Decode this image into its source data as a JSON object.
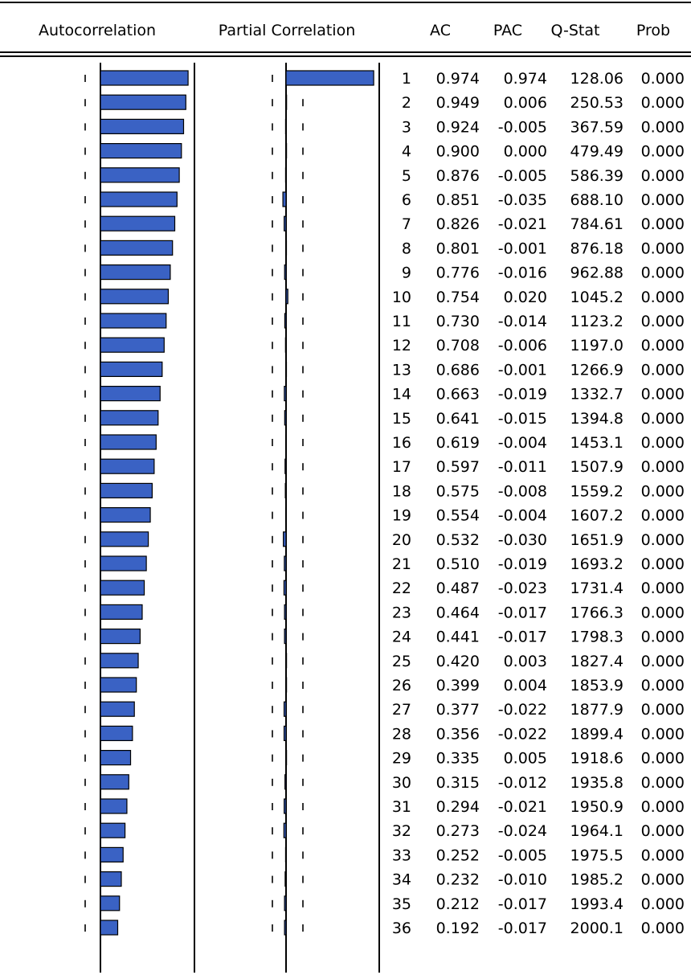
{
  "headers": {
    "autocorrelation": "Autocorrelation",
    "partial_correlation": "Partial Correlation",
    "ac": "AC",
    "pac": "PAC",
    "q_stat": "Q-Stat",
    "prob": "Prob"
  },
  "colors": {
    "bar_fill": "#3a62c4",
    "bar_outline": "#000000",
    "line": "#000000",
    "background": "#ffffff"
  },
  "chart_data": {
    "type": "table",
    "columns": [
      "Autocorrelation",
      "Partial Correlation",
      "",
      "AC",
      "PAC",
      "Q-Stat",
      "Prob"
    ],
    "xlim": [
      -1,
      1
    ],
    "rows": [
      {
        "lag": "1",
        "ac": "0.974",
        "pac": "0.974",
        "q": "128.06",
        "prob": "0.000"
      },
      {
        "lag": "2",
        "ac": "0.949",
        "pac": "0.006",
        "q": "250.53",
        "prob": "0.000"
      },
      {
        "lag": "3",
        "ac": "0.924",
        "pac": "-0.005",
        "q": "367.59",
        "prob": "0.000"
      },
      {
        "lag": "4",
        "ac": "0.900",
        "pac": "0.000",
        "q": "479.49",
        "prob": "0.000"
      },
      {
        "lag": "5",
        "ac": "0.876",
        "pac": "-0.005",
        "q": "586.39",
        "prob": "0.000"
      },
      {
        "lag": "6",
        "ac": "0.851",
        "pac": "-0.035",
        "q": "688.10",
        "prob": "0.000"
      },
      {
        "lag": "7",
        "ac": "0.826",
        "pac": "-0.021",
        "q": "784.61",
        "prob": "0.000"
      },
      {
        "lag": "8",
        "ac": "0.801",
        "pac": "-0.001",
        "q": "876.18",
        "prob": "0.000"
      },
      {
        "lag": "9",
        "ac": "0.776",
        "pac": "-0.016",
        "q": "962.88",
        "prob": "0.000"
      },
      {
        "lag": "10",
        "ac": "0.754",
        "pac": "0.020",
        "q": "1045.2",
        "prob": "0.000"
      },
      {
        "lag": "11",
        "ac": "0.730",
        "pac": "-0.014",
        "q": "1123.2",
        "prob": "0.000"
      },
      {
        "lag": "12",
        "ac": "0.708",
        "pac": "-0.006",
        "q": "1197.0",
        "prob": "0.000"
      },
      {
        "lag": "13",
        "ac": "0.686",
        "pac": "-0.001",
        "q": "1266.9",
        "prob": "0.000"
      },
      {
        "lag": "14",
        "ac": "0.663",
        "pac": "-0.019",
        "q": "1332.7",
        "prob": "0.000"
      },
      {
        "lag": "15",
        "ac": "0.641",
        "pac": "-0.015",
        "q": "1394.8",
        "prob": "0.000"
      },
      {
        "lag": "16",
        "ac": "0.619",
        "pac": "-0.004",
        "q": "1453.1",
        "prob": "0.000"
      },
      {
        "lag": "17",
        "ac": "0.597",
        "pac": "-0.011",
        "q": "1507.9",
        "prob": "0.000"
      },
      {
        "lag": "18",
        "ac": "0.575",
        "pac": "-0.008",
        "q": "1559.2",
        "prob": "0.000"
      },
      {
        "lag": "19",
        "ac": "0.554",
        "pac": "-0.004",
        "q": "1607.2",
        "prob": "0.000"
      },
      {
        "lag": "20",
        "ac": "0.532",
        "pac": "-0.030",
        "q": "1651.9",
        "prob": "0.000"
      },
      {
        "lag": "21",
        "ac": "0.510",
        "pac": "-0.019",
        "q": "1693.2",
        "prob": "0.000"
      },
      {
        "lag": "22",
        "ac": "0.487",
        "pac": "-0.023",
        "q": "1731.4",
        "prob": "0.000"
      },
      {
        "lag": "23",
        "ac": "0.464",
        "pac": "-0.017",
        "q": "1766.3",
        "prob": "0.000"
      },
      {
        "lag": "24",
        "ac": "0.441",
        "pac": "-0.017",
        "q": "1798.3",
        "prob": "0.000"
      },
      {
        "lag": "25",
        "ac": "0.420",
        "pac": "0.003",
        "q": "1827.4",
        "prob": "0.000"
      },
      {
        "lag": "26",
        "ac": "0.399",
        "pac": "0.004",
        "q": "1853.9",
        "prob": "0.000"
      },
      {
        "lag": "27",
        "ac": "0.377",
        "pac": "-0.022",
        "q": "1877.9",
        "prob": "0.000"
      },
      {
        "lag": "28",
        "ac": "0.356",
        "pac": "-0.022",
        "q": "1899.4",
        "prob": "0.000"
      },
      {
        "lag": "29",
        "ac": "0.335",
        "pac": "0.005",
        "q": "1918.6",
        "prob": "0.000"
      },
      {
        "lag": "30",
        "ac": "0.315",
        "pac": "-0.012",
        "q": "1935.8",
        "prob": "0.000"
      },
      {
        "lag": "31",
        "ac": "0.294",
        "pac": "-0.021",
        "q": "1950.9",
        "prob": "0.000"
      },
      {
        "lag": "32",
        "ac": "0.273",
        "pac": "-0.024",
        "q": "1964.1",
        "prob": "0.000"
      },
      {
        "lag": "33",
        "ac": "0.252",
        "pac": "-0.005",
        "q": "1975.5",
        "prob": "0.000"
      },
      {
        "lag": "34",
        "ac": "0.232",
        "pac": "-0.010",
        "q": "1985.2",
        "prob": "0.000"
      },
      {
        "lag": "35",
        "ac": "0.212",
        "pac": "-0.017",
        "q": "1993.4",
        "prob": "0.000"
      },
      {
        "lag": "36",
        "ac": "0.192",
        "pac": "-0.017",
        "q": "2000.1",
        "prob": "0.000"
      }
    ]
  }
}
